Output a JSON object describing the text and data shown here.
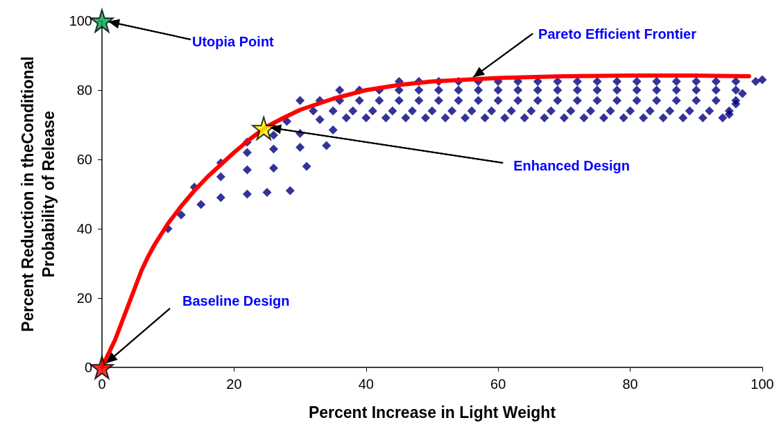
{
  "chart_data": {
    "type": "scatter",
    "xlabel": "Percent Increase in Light Weight",
    "ylabel": "Percent Reduction in theConditional\nProbability of Release",
    "xlim": [
      0,
      100
    ],
    "xticks": [
      0,
      20,
      40,
      60,
      80,
      100
    ],
    "ylim": [
      0,
      100
    ],
    "yticks": [
      0,
      20,
      40,
      60,
      80,
      100
    ],
    "series": [
      {
        "marker": "diamond",
        "color": "#000080",
        "x": [
          10,
          12,
          15,
          18,
          22,
          25,
          28.5,
          14,
          18,
          22,
          26,
          31,
          18,
          22,
          26,
          30,
          34,
          22,
          26,
          30,
          35,
          28,
          33,
          37,
          40,
          43,
          46,
          49,
          52,
          55,
          58,
          61,
          64,
          67,
          70,
          73,
          76,
          79,
          82,
          85,
          88,
          91,
          94,
          32,
          35,
          38,
          41,
          44,
          47,
          50,
          53,
          56,
          59,
          62,
          65,
          68,
          71,
          74,
          77,
          80,
          83,
          86,
          89,
          92,
          95,
          30,
          33,
          36,
          39,
          42,
          45,
          48,
          51,
          54,
          57,
          60,
          63,
          66,
          69,
          72,
          75,
          78,
          81,
          84,
          87,
          90,
          93,
          96,
          36,
          39,
          42,
          45,
          48,
          51,
          54,
          57,
          60,
          63,
          66,
          69,
          72,
          75,
          78,
          81,
          84,
          87,
          90,
          93,
          96,
          45,
          48,
          51,
          54,
          57,
          60,
          63,
          66,
          69,
          72,
          75,
          78,
          81,
          84,
          87,
          90,
          93,
          96,
          99,
          100,
          97,
          96,
          95
        ],
        "values": [
          40,
          44,
          47,
          49,
          50,
          50.5,
          51,
          52,
          55,
          57,
          57.5,
          58,
          59,
          62,
          63,
          63.5,
          64,
          65,
          67,
          67.5,
          68.5,
          71,
          71.5,
          72,
          72,
          72,
          72,
          72,
          72,
          72,
          72,
          72,
          72,
          72,
          72,
          72,
          72,
          72,
          72,
          72,
          72,
          72,
          72,
          74,
          74,
          74,
          74,
          74,
          74,
          74,
          74,
          74,
          74,
          74,
          74,
          74,
          74,
          74,
          74,
          74,
          74,
          74,
          74,
          74,
          74,
          77,
          77,
          77,
          77,
          77,
          77,
          77,
          77,
          77,
          77,
          77,
          77,
          77,
          77,
          77,
          77,
          77,
          77,
          77,
          77,
          77,
          77,
          77,
          80,
          80,
          80,
          80,
          80,
          80,
          80,
          80,
          80,
          80,
          80,
          80,
          80,
          80,
          80,
          80,
          80,
          80,
          80,
          80,
          80,
          82.5,
          82.5,
          82.5,
          82.5,
          82.5,
          82.5,
          82.5,
          82.5,
          82.5,
          82.5,
          82.5,
          82.5,
          82.5,
          82.5,
          82.5,
          82.5,
          82.5,
          82.5,
          82.5,
          83,
          79,
          76,
          73
        ]
      },
      {
        "type": "line",
        "marker": "none",
        "color": "#ff0000",
        "x": [
          0,
          1,
          2,
          3,
          4,
          5,
          6,
          7,
          8,
          9,
          10,
          12,
          14,
          16,
          18,
          20,
          22.5,
          25,
          27.5,
          30,
          35,
          40,
          45,
          50,
          60,
          70,
          80,
          90,
          98
        ],
        "values": [
          0,
          4,
          8,
          13,
          18,
          23,
          28,
          32,
          35.5,
          38.5,
          41.5,
          46.5,
          51,
          55,
          58.5,
          62,
          66,
          69.5,
          72,
          74.3,
          77.5,
          80,
          81.5,
          82.5,
          83.5,
          84,
          84.2,
          84.2,
          84
        ]
      },
      {
        "marker": "star",
        "x": [
          0,
          24.5,
          0
        ],
        "values": [
          100,
          69,
          0
        ],
        "colors": [
          "#00a550",
          "#ffff00",
          "#ff0000"
        ]
      }
    ],
    "annotations": [
      {
        "text": "Utopia Point",
        "x": 0,
        "y": 100
      },
      {
        "text": "Pareto Efficient Frontier",
        "x": 56,
        "y": 83.3
      },
      {
        "text": "Enhanced Design",
        "x": 24.5,
        "y": 69
      },
      {
        "text": "Baseline Design",
        "x": 0,
        "y": 0
      }
    ]
  }
}
